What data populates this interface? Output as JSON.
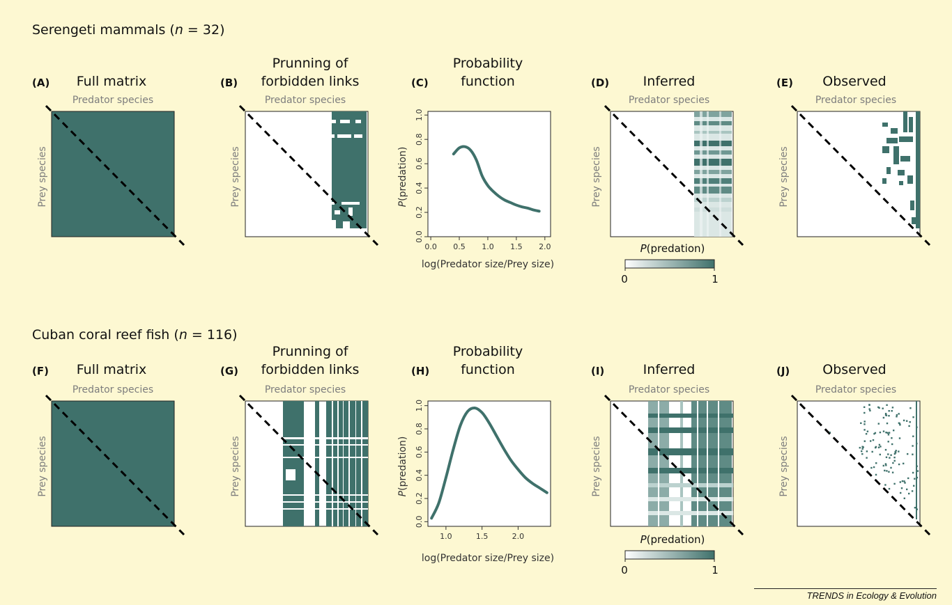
{
  "colors": {
    "teal": "#3f716b",
    "background": "#fdf8d2"
  },
  "rows": [
    {
      "title_prefix": "Serengeti mammals (",
      "title_n": "n",
      "title_suffix": " = 32)",
      "panels": {
        "full": {
          "letter": "(A)",
          "title": "Full matrix"
        },
        "prune": {
          "letter": "(B)",
          "title_line1": "Prunning of",
          "title_line2": "forbidden links"
        },
        "prob": {
          "letter": "(C)",
          "title_line1": "Probability",
          "title_line2": "function"
        },
        "inferred": {
          "letter": "(D)",
          "title": "Inferred"
        },
        "observed": {
          "letter": "(E)",
          "title": "Observed"
        }
      }
    },
    {
      "title_prefix": "Cuban coral reef fish (",
      "title_n": "n",
      "title_suffix": " = 116)",
      "panels": {
        "full": {
          "letter": "(F)",
          "title": "Full matrix"
        },
        "prune": {
          "letter": "(G)",
          "title_line1": "Prunning of",
          "title_line2": "forbidden links"
        },
        "prob": {
          "letter": "(H)",
          "title_line1": "Probability",
          "title_line2": "function"
        },
        "inferred": {
          "letter": "(I)",
          "title": "Inferred"
        },
        "observed": {
          "letter": "(J)",
          "title": "Observed"
        }
      }
    }
  ],
  "axis": {
    "predator": "Predator species",
    "prey": "Prey species",
    "prob_x": "log(Predator size/Prey size)",
    "prob_y_italic": "P",
    "prob_y_rest": "(predation)"
  },
  "legend": {
    "label_italic": "P",
    "label_rest": "(predation)",
    "min": "0",
    "max": "1"
  },
  "footer": "TRENDS in Ecology & Evolution",
  "chart_data": [
    {
      "type": "line",
      "panel": "(C)",
      "xlabel": "log(Predator size/Prey size)",
      "ylabel": "P(predation)",
      "xlim": [
        -0.05,
        2.1
      ],
      "ylim": [
        0,
        1.03
      ],
      "xticks": [
        "0.0",
        "0.5",
        "1.0",
        "1.5",
        "2.0"
      ],
      "yticks": [
        "0.0",
        "0.2",
        "0.4",
        "0.6",
        "0.8",
        "1.0"
      ],
      "x": [
        0.4,
        0.5,
        0.6,
        0.7,
        0.8,
        0.9,
        1.0,
        1.1,
        1.2,
        1.3,
        1.4,
        1.5,
        1.6,
        1.7,
        1.8,
        1.9
      ],
      "y": [
        0.68,
        0.73,
        0.74,
        0.71,
        0.63,
        0.5,
        0.42,
        0.37,
        0.33,
        0.3,
        0.28,
        0.26,
        0.245,
        0.235,
        0.22,
        0.21
      ]
    },
    {
      "type": "line",
      "panel": "(H)",
      "xlabel": "log(Predator size/Prey size)",
      "ylabel": "P(predation)",
      "xlim": [
        0.75,
        2.45
      ],
      "ylim": [
        -0.04,
        1.04
      ],
      "xticks": [
        "1.0",
        "1.5",
        "2.0"
      ],
      "yticks": [
        "0.0",
        "0.2",
        "0.4",
        "0.6",
        "0.8",
        "1.0"
      ],
      "x": [
        0.8,
        0.9,
        1.0,
        1.1,
        1.2,
        1.3,
        1.4,
        1.5,
        1.6,
        1.7,
        1.8,
        1.9,
        2.0,
        2.1,
        2.2,
        2.3,
        2.4
      ],
      "y": [
        0.03,
        0.16,
        0.38,
        0.62,
        0.83,
        0.95,
        0.98,
        0.94,
        0.85,
        0.74,
        0.63,
        0.53,
        0.45,
        0.38,
        0.33,
        0.29,
        0.25
      ]
    },
    {
      "type": "heatmap",
      "panel": "legend",
      "title": "P(predation)",
      "range": [
        0,
        1
      ]
    }
  ]
}
